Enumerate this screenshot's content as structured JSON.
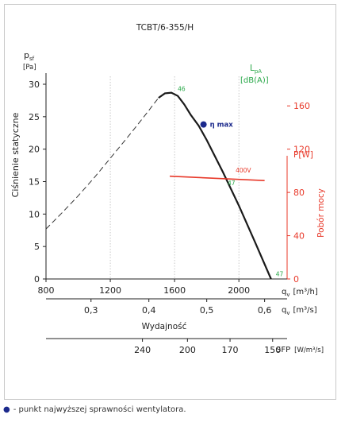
{
  "chart_data": {
    "type": "line",
    "title": "TCBT/6-355/H",
    "y_axis": {
      "symbol": "p",
      "subscript": "sf",
      "unit": "[Pa]",
      "label": "Ciśnienie statyczne",
      "ylim": [
        0,
        30
      ],
      "ticks": [
        "0",
        "5",
        "10",
        "15",
        "20",
        "25",
        "30"
      ]
    },
    "x_axis_flow_h": {
      "symbol": "q",
      "subscript": "v",
      "unit": "[m³/h]",
      "xlim": [
        800,
        2300
      ],
      "ticks": [
        "800",
        "1200",
        "1600",
        "2000"
      ]
    },
    "x_axis_flow_s": {
      "symbol": "q",
      "subscript": "v",
      "unit": "[m³/s]",
      "ticks": [
        "0,3",
        "0,4",
        "0,5",
        "0,6"
      ],
      "values": [
        0.3,
        0.4,
        0.5,
        0.6
      ]
    },
    "x_axis_label": "Wydajność",
    "sfp_axis": {
      "label": "SFP",
      "unit": "[W/m³/s]",
      "ticks": [
        "240",
        "200",
        "170",
        "150"
      ],
      "at_flow_m3h": [
        1400,
        1680,
        1945,
        2210
      ]
    },
    "sound_label": {
      "symbol": "L",
      "subscript": "pA",
      "unit": "[dB(A)]"
    },
    "power_axis": {
      "label": "Pobór mocy",
      "unit": "P[W]",
      "ylim": [
        0,
        180
      ],
      "ticks": [
        "0",
        "40",
        "80",
        "120",
        "160"
      ]
    },
    "series": [
      {
        "id": "pressure_unstable",
        "style": "dashed",
        "color": "#333333",
        "x": [
          800,
          900,
          1000,
          1100,
          1200,
          1300,
          1400,
          1500
        ],
        "y": [
          7.7,
          10.2,
          12.8,
          15.6,
          18.6,
          21.6,
          24.7,
          27.9
        ]
      },
      {
        "id": "pressure",
        "style": "solid",
        "color": "#1a1a1a",
        "x": [
          1500,
          1540,
          1580,
          1620,
          1660,
          1700,
          1750,
          1800,
          1900,
          2000,
          2100,
          2200
        ],
        "y": [
          27.9,
          28.6,
          28.7,
          28.2,
          26.9,
          25.3,
          23.6,
          21.4,
          16.5,
          11.3,
          5.7,
          0.0
        ]
      },
      {
        "id": "power",
        "name": "400V",
        "style": "solid",
        "color": "#e8392a",
        "axis": "power",
        "x": [
          1570,
          2160
        ],
        "y": [
          95,
          91
        ]
      }
    ],
    "annotations": [
      {
        "text": "46",
        "x": 1600,
        "y": 28.7,
        "color": "#2aa84a"
      },
      {
        "text": "47",
        "x": 1910,
        "y": 14.2,
        "color": "#2aa84a"
      },
      {
        "text": "47",
        "x": 2210,
        "y": 0.2,
        "color": "#2aa84a"
      },
      {
        "text": "400V",
        "x": 1960,
        "y": 97,
        "axis": "power",
        "color": "#e8392a"
      }
    ],
    "max_efficiency_point": {
      "x": 1780,
      "y": 23.8,
      "label": "η max",
      "color": "#1c2a8c"
    },
    "grid": "vertical-dotted"
  },
  "footnote": "- punkt najwyższej sprawności wentylatora."
}
